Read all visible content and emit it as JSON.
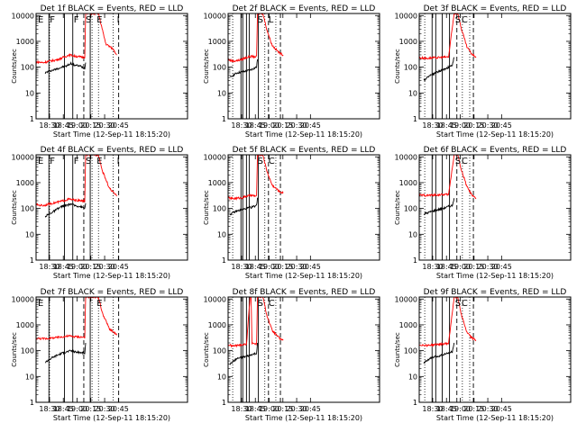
{
  "chart_data": {
    "type": "line",
    "layout": "3x3 grid of detector lightcurve panels",
    "shared": {
      "ylabel": "Counts/sec",
      "xlabel": "Start Time (12-Sep-11 18:15:20)",
      "y_scale": "log",
      "ylim": [
        1,
        12000
      ],
      "y_ticks": [
        "1",
        "10",
        "100",
        "1000",
        "10000"
      ],
      "x_range_min": [
        0,
        165
      ],
      "x_ticks": [
        {
          "label": "18:30",
          "min": 14.7
        },
        {
          "label": "18:45",
          "min": 29.7
        },
        {
          "label": "19:00",
          "min": 44.7
        },
        {
          "label": "20:15",
          "min": 59.7
        },
        {
          "label": "20:30",
          "min": 74.7
        },
        {
          "label": "20:45",
          "min": 89.7
        }
      ],
      "series": [
        {
          "name": "BLACK = Events",
          "color": "#000000"
        },
        {
          "name": "RED = LLD",
          "color": "#ff0000"
        }
      ],
      "title_template": "Det {id} BLACK = Events, RED = LLD",
      "markers": [
        "E",
        "F",
        "F",
        "S",
        "E"
      ]
    },
    "panels": [
      {
        "id": "1f",
        "solid_lines": [
          14,
          31,
          40,
          59
        ],
        "dotted_lines": [
          14.7,
          61,
          68,
          84
        ],
        "dashed_lines": [
          52,
          90
        ],
        "markers": [
          {
            "t": "E",
            "x": 2
          },
          {
            "t": "F",
            "x": 15
          },
          {
            "t": "F",
            "x": 41
          },
          {
            "t": "S",
            "x": 54
          },
          {
            "t": "E",
            "x": 66
          },
          {
            "t": "I",
            "x": 88
          }
        ],
        "black": [
          [
            10,
            60
          ],
          [
            14,
            70
          ],
          [
            20,
            80
          ],
          [
            28,
            100
          ],
          [
            33,
            110
          ],
          [
            38,
            140
          ],
          [
            42,
            120
          ],
          [
            48,
            110
          ],
          [
            53,
            90
          ],
          [
            54,
            150
          ]
        ],
        "red": [
          [
            0,
            160
          ],
          [
            8,
            150
          ],
          [
            14,
            170
          ],
          [
            22,
            190
          ],
          [
            30,
            240
          ],
          [
            36,
            300
          ],
          [
            42,
            270
          ],
          [
            48,
            250
          ],
          [
            53,
            240
          ],
          [
            54,
            12000
          ],
          [
            68,
            12000
          ],
          [
            70,
            6000
          ],
          [
            76,
            800
          ],
          [
            84,
            500
          ],
          [
            88,
            300
          ]
        ]
      },
      {
        "id": "2f",
        "solid_lines": [
          14,
          16,
          20,
          23,
          33
        ],
        "dotted_lines": [
          5,
          40,
          52
        ],
        "dashed_lines": [
          44,
          57
        ],
        "markers": [
          {
            "t": "S",
            "x": 32
          },
          {
            "t": "L",
            "x": 44
          }
        ],
        "black": [
          [
            2,
            40
          ],
          [
            6,
            50
          ],
          [
            10,
            60
          ],
          [
            15,
            65
          ],
          [
            20,
            70
          ],
          [
            25,
            80
          ],
          [
            31,
            100
          ],
          [
            32,
            200
          ]
        ],
        "red": [
          [
            0,
            200
          ],
          [
            5,
            170
          ],
          [
            10,
            180
          ],
          [
            15,
            200
          ],
          [
            20,
            240
          ],
          [
            25,
            260
          ],
          [
            31,
            250
          ],
          [
            32,
            12000
          ],
          [
            38,
            12000
          ],
          [
            42,
            3000
          ],
          [
            48,
            700
          ],
          [
            56,
            350
          ],
          [
            60,
            300
          ]
        ]
      },
      {
        "id": "3f",
        "solid_lines": [
          14,
          18,
          25,
          33
        ],
        "dotted_lines": [
          6,
          47,
          55
        ],
        "dashed_lines": [
          41,
          59
        ],
        "markers": [
          {
            "t": "S",
            "x": 39
          },
          {
            "t": "C",
            "x": 46
          }
        ],
        "black": [
          [
            5,
            30
          ],
          [
            10,
            45
          ],
          [
            15,
            55
          ],
          [
            20,
            65
          ],
          [
            26,
            80
          ],
          [
            32,
            100
          ],
          [
            36,
            120
          ],
          [
            38,
            240
          ]
        ],
        "red": [
          [
            0,
            230
          ],
          [
            8,
            220
          ],
          [
            16,
            230
          ],
          [
            24,
            240
          ],
          [
            32,
            250
          ],
          [
            38,
            12000
          ],
          [
            42,
            12000
          ],
          [
            46,
            3000
          ],
          [
            52,
            600
          ],
          [
            58,
            300
          ],
          [
            62,
            250
          ]
        ]
      },
      {
        "id": "4f",
        "solid_lines": [
          14,
          31,
          40,
          59
        ],
        "dotted_lines": [
          14.7,
          61,
          68,
          84
        ],
        "dashed_lines": [
          52,
          90
        ],
        "markers": [
          {
            "t": "E",
            "x": 2
          },
          {
            "t": "F",
            "x": 15
          },
          {
            "t": "F",
            "x": 41
          },
          {
            "t": "S",
            "x": 54
          },
          {
            "t": "E",
            "x": 66
          },
          {
            "t": "I",
            "x": 88
          }
        ],
        "black": [
          [
            10,
            50
          ],
          [
            14,
            60
          ],
          [
            20,
            80
          ],
          [
            28,
            120
          ],
          [
            33,
            130
          ],
          [
            38,
            150
          ],
          [
            42,
            130
          ],
          [
            48,
            120
          ],
          [
            53,
            100
          ],
          [
            54,
            160
          ]
        ],
        "red": [
          [
            0,
            140
          ],
          [
            8,
            130
          ],
          [
            14,
            150
          ],
          [
            22,
            170
          ],
          [
            30,
            200
          ],
          [
            36,
            230
          ],
          [
            42,
            210
          ],
          [
            48,
            200
          ],
          [
            53,
            190
          ],
          [
            54,
            12000
          ],
          [
            68,
            12000
          ],
          [
            72,
            3000
          ],
          [
            80,
            600
          ],
          [
            88,
            300
          ]
        ]
      },
      {
        "id": "5f",
        "solid_lines": [
          14,
          16,
          20,
          23,
          33
        ],
        "dotted_lines": [
          5,
          40,
          52
        ],
        "dashed_lines": [
          44,
          57
        ],
        "markers": [
          {
            "t": "S",
            "x": 32
          },
          {
            "t": "C",
            "x": 44
          }
        ],
        "black": [
          [
            2,
            60
          ],
          [
            6,
            70
          ],
          [
            10,
            80
          ],
          [
            15,
            90
          ],
          [
            20,
            100
          ],
          [
            25,
            110
          ],
          [
            31,
            130
          ],
          [
            32,
            260
          ]
        ],
        "red": [
          [
            0,
            260
          ],
          [
            5,
            240
          ],
          [
            10,
            250
          ],
          [
            15,
            260
          ],
          [
            20,
            300
          ],
          [
            25,
            320
          ],
          [
            31,
            300
          ],
          [
            32,
            12000
          ],
          [
            38,
            12000
          ],
          [
            42,
            3000
          ],
          [
            48,
            800
          ],
          [
            56,
            450
          ],
          [
            60,
            400
          ]
        ]
      },
      {
        "id": "6f",
        "solid_lines": [
          14,
          18,
          25,
          33
        ],
        "dotted_lines": [
          6,
          47,
          55
        ],
        "dashed_lines": [
          41,
          59
        ],
        "markers": [
          {
            "t": "S",
            "x": 39
          },
          {
            "t": "C",
            "x": 46
          }
        ],
        "black": [
          [
            5,
            60
          ],
          [
            10,
            70
          ],
          [
            15,
            80
          ],
          [
            20,
            90
          ],
          [
            26,
            100
          ],
          [
            32,
            120
          ],
          [
            36,
            130
          ],
          [
            38,
            250
          ]
        ],
        "red": [
          [
            0,
            330
          ],
          [
            8,
            320
          ],
          [
            16,
            330
          ],
          [
            24,
            340
          ],
          [
            32,
            350
          ],
          [
            38,
            12000
          ],
          [
            42,
            12000
          ],
          [
            46,
            3000
          ],
          [
            52,
            700
          ],
          [
            58,
            300
          ],
          [
            62,
            250
          ]
        ]
      },
      {
        "id": "7f",
        "solid_lines": [
          14,
          31,
          40,
          59
        ],
        "dotted_lines": [
          14.7,
          61,
          68,
          84
        ],
        "dashed_lines": [
          52,
          90
        ],
        "markers": [
          {
            "t": "E",
            "x": 2
          },
          {
            "t": "E",
            "x": 66
          }
        ],
        "black": [
          [
            10,
            35
          ],
          [
            14,
            45
          ],
          [
            20,
            60
          ],
          [
            28,
            80
          ],
          [
            33,
            90
          ],
          [
            38,
            100
          ],
          [
            42,
            90
          ],
          [
            48,
            85
          ],
          [
            53,
            80
          ],
          [
            54,
            200
          ]
        ],
        "red": [
          [
            0,
            300
          ],
          [
            8,
            290
          ],
          [
            14,
            300
          ],
          [
            22,
            320
          ],
          [
            30,
            350
          ],
          [
            36,
            370
          ],
          [
            42,
            350
          ],
          [
            48,
            340
          ],
          [
            53,
            330
          ],
          [
            54,
            12000
          ],
          [
            68,
            12000
          ],
          [
            72,
            3000
          ],
          [
            80,
            700
          ],
          [
            88,
            400
          ]
        ]
      },
      {
        "id": "8f",
        "solid_lines": [
          14,
          16,
          20,
          23,
          33
        ],
        "dotted_lines": [
          5,
          40,
          52
        ],
        "dashed_lines": [
          44,
          57
        ],
        "markers": [
          {
            "t": "S",
            "x": 32
          },
          {
            "t": "C",
            "x": 44
          }
        ],
        "black": [
          [
            2,
            30
          ],
          [
            6,
            40
          ],
          [
            10,
            50
          ],
          [
            15,
            55
          ],
          [
            20,
            60
          ],
          [
            25,
            70
          ],
          [
            31,
            80
          ],
          [
            32,
            200
          ]
        ],
        "red": [
          [
            0,
            170
          ],
          [
            5,
            150
          ],
          [
            10,
            160
          ],
          [
            15,
            170
          ],
          [
            20,
            180
          ],
          [
            24,
            12000
          ],
          [
            25,
            12000
          ],
          [
            26,
            200
          ],
          [
            31,
            180
          ],
          [
            32,
            12000
          ],
          [
            38,
            12000
          ],
          [
            42,
            2500
          ],
          [
            48,
            600
          ],
          [
            56,
            300
          ],
          [
            60,
            250
          ]
        ]
      },
      {
        "id": "9f",
        "solid_lines": [
          14,
          18,
          25,
          33
        ],
        "dotted_lines": [
          6,
          47,
          55
        ],
        "dashed_lines": [
          41,
          59
        ],
        "markers": [
          {
            "t": "S",
            "x": 39
          },
          {
            "t": "C",
            "x": 46
          }
        ],
        "black": [
          [
            5,
            35
          ],
          [
            10,
            45
          ],
          [
            15,
            55
          ],
          [
            20,
            60
          ],
          [
            26,
            70
          ],
          [
            32,
            80
          ],
          [
            36,
            90
          ],
          [
            38,
            200
          ]
        ],
        "red": [
          [
            0,
            170
          ],
          [
            8,
            160
          ],
          [
            16,
            170
          ],
          [
            24,
            180
          ],
          [
            32,
            190
          ],
          [
            38,
            12000
          ],
          [
            42,
            12000
          ],
          [
            46,
            2500
          ],
          [
            52,
            500
          ],
          [
            58,
            300
          ],
          [
            62,
            250
          ]
        ]
      }
    ]
  }
}
